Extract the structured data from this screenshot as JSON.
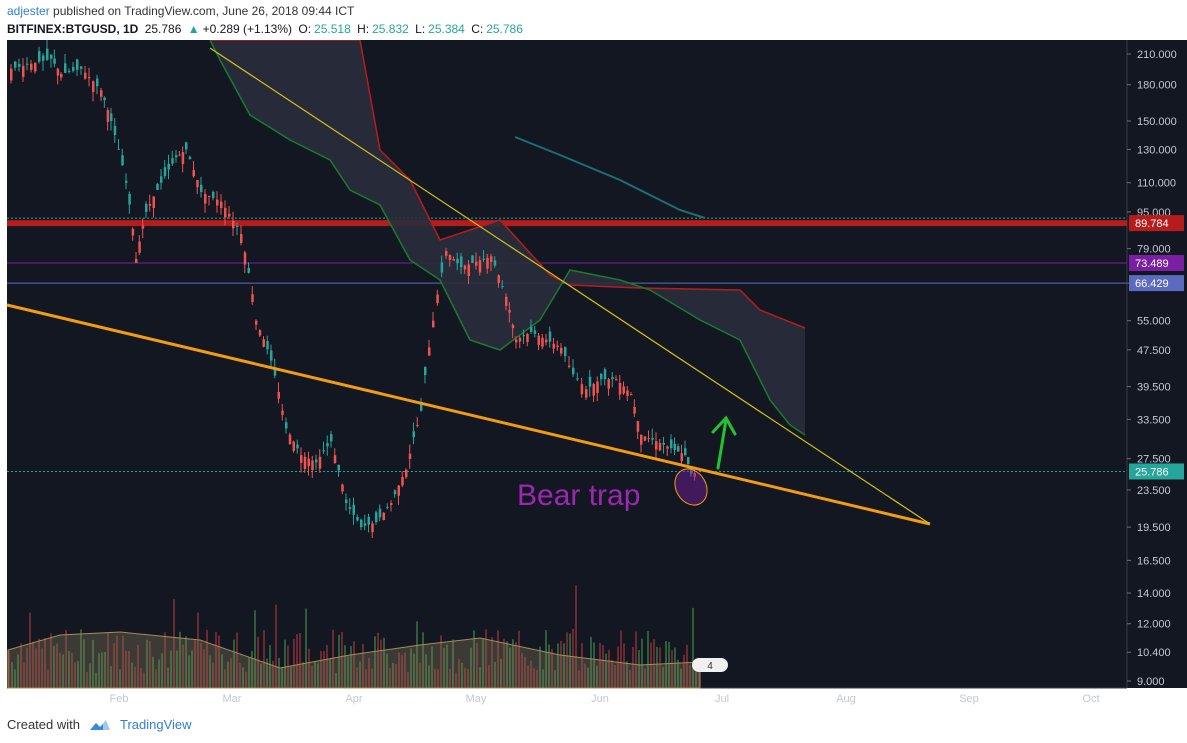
{
  "header": {
    "author": "adjester",
    "published_text": "published on TradingView.com, June 26, 2018 09:44 ICT",
    "symbol": "BITFINEX:BTGUSD, 1D",
    "last": "25.786",
    "change_arrow": "▲",
    "change": "+0.289 (+1.13%)",
    "o_label": "O:",
    "o": "25.518",
    "h_label": "H:",
    "h": "25.832",
    "l_label": "L:",
    "l": "25.384",
    "c_label": "C:",
    "c": "25.786"
  },
  "footer": {
    "created_with": "Created with",
    "brand": "TradingView",
    "brand_icon": "tradingview-cloud-icon"
  },
  "colors": {
    "background": "#131722",
    "up": "#26a69a",
    "down": "#ef5350",
    "trendline_orange": "#f39c12",
    "trendline_yellow": "#d4c21a",
    "resistance": "#b71c1c",
    "purple_line": "#7b1fa2",
    "annotation_purple": "#9c27b0",
    "arrow_green": "#22c32e",
    "ma_teal": "#1e6e73",
    "cloud_red": "#b71c1c",
    "cloud_green": "#1b7a2e"
  },
  "chart_data": {
    "type": "candlestick",
    "scale": "log",
    "yticks": [
      "210.000",
      "180.000",
      "150.000",
      "130.000",
      "110.000",
      "95.000",
      "79.000",
      "66.429",
      "55.000",
      "47.500",
      "39.500",
      "33.500",
      "27.500",
      "23.500",
      "19.500",
      "16.500",
      "14.000",
      "12.000",
      "10.400",
      "9.000"
    ],
    "xticks": [
      "Feb",
      "Mar",
      "Apr",
      "May",
      "Jun",
      "Jul",
      "Aug",
      "Sep",
      "Oct"
    ],
    "price_labels": [
      {
        "text": "89.784",
        "value": 89.784,
        "color": "#b71c1c"
      },
      {
        "text": "73.489",
        "value": 73.489,
        "color": "#7b1fa2"
      },
      {
        "text": "66.429",
        "value": 66.429,
        "color": "#5c6bc0"
      },
      {
        "text": "25.786",
        "value": 25.786,
        "color": "#26a69a"
      }
    ],
    "annotation": {
      "text": "Bear trap",
      "color": "#9c27b0"
    },
    "volume_badge": "4"
  }
}
